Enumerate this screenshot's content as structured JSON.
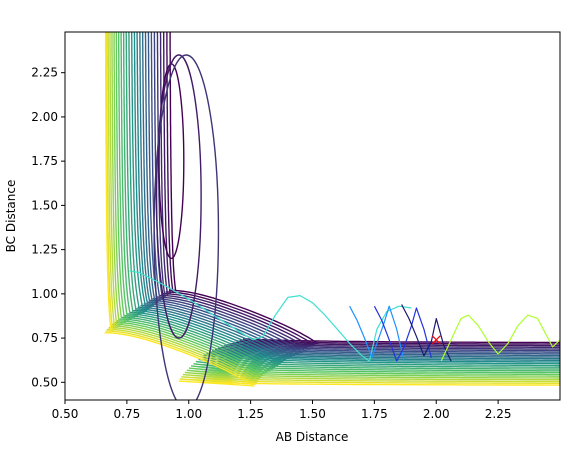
{
  "chart_data": {
    "type": "contour",
    "title": "",
    "xlabel": "AB Distance",
    "ylabel": "BC Distance",
    "xlim": [
      0.5,
      2.5
    ],
    "ylim": [
      0.4,
      2.48
    ],
    "xticks": [
      "0.50",
      "0.75",
      "1.00",
      "1.25",
      "1.50",
      "1.75",
      "2.00",
      "2.25"
    ],
    "yticks": [
      "0.50",
      "0.75",
      "1.00",
      "1.25",
      "1.50",
      "1.75",
      "2.00",
      "2.25"
    ],
    "grid": false,
    "legend": "none",
    "colormap": [
      "#440154",
      "#3b528b",
      "#21918c",
      "#5ec962",
      "#fde725"
    ],
    "contour_levels": 26,
    "marker": {
      "x": 2.0,
      "y": 0.74,
      "symbol": "x",
      "color": "#ff0000"
    },
    "trajectories": [
      {
        "color": "#40e0d0",
        "points": [
          [
            0.76,
            1.13
          ],
          [
            0.8,
            1.12
          ],
          [
            0.9,
            1.05
          ],
          [
            1.0,
            0.97
          ],
          [
            1.1,
            0.88
          ],
          [
            1.2,
            0.79
          ],
          [
            1.26,
            0.74
          ],
          [
            1.3,
            0.76
          ],
          [
            1.35,
            0.88
          ],
          [
            1.4,
            0.98
          ],
          [
            1.45,
            0.99
          ],
          [
            1.5,
            0.95
          ],
          [
            1.55,
            0.88
          ],
          [
            1.6,
            0.8
          ],
          [
            1.65,
            0.72
          ],
          [
            1.7,
            0.65
          ],
          [
            1.73,
            0.62
          ],
          [
            1.76,
            0.8
          ],
          [
            1.8,
            0.9
          ],
          [
            1.85,
            0.93
          ],
          [
            1.9,
            0.92
          ]
        ]
      },
      {
        "color": "#1e90ff",
        "points": [
          [
            1.65,
            0.93
          ],
          [
            1.68,
            0.85
          ],
          [
            1.71,
            0.75
          ],
          [
            1.74,
            0.64
          ],
          [
            1.76,
            0.72
          ],
          [
            1.79,
            0.84
          ],
          [
            1.81,
            0.93
          ],
          [
            1.84,
            0.8
          ],
          [
            1.87,
            0.62
          ]
        ]
      },
      {
        "color": "#2233dd",
        "points": [
          [
            1.75,
            0.93
          ],
          [
            1.78,
            0.85
          ],
          [
            1.81,
            0.74
          ],
          [
            1.84,
            0.62
          ],
          [
            1.87,
            0.7
          ],
          [
            1.9,
            0.82
          ],
          [
            1.92,
            0.92
          ],
          [
            1.95,
            0.8
          ],
          [
            1.98,
            0.64
          ]
        ]
      },
      {
        "color": "#191970",
        "points": [
          [
            1.86,
            0.94
          ],
          [
            1.89,
            0.86
          ],
          [
            1.92,
            0.76
          ],
          [
            1.95,
            0.65
          ],
          [
            1.98,
            0.73
          ],
          [
            2.0,
            0.86
          ],
          [
            2.03,
            0.71
          ],
          [
            2.06,
            0.62
          ]
        ]
      },
      {
        "color": "#adff2f",
        "points": [
          [
            2.02,
            0.62
          ],
          [
            2.06,
            0.74
          ],
          [
            2.1,
            0.86
          ],
          [
            2.13,
            0.88
          ],
          [
            2.17,
            0.82
          ],
          [
            2.21,
            0.73
          ],
          [
            2.25,
            0.66
          ],
          [
            2.29,
            0.72
          ],
          [
            2.33,
            0.82
          ],
          [
            2.37,
            0.88
          ],
          [
            2.41,
            0.86
          ],
          [
            2.44,
            0.78
          ],
          [
            2.47,
            0.7
          ],
          [
            2.5,
            0.74
          ]
        ]
      }
    ]
  }
}
